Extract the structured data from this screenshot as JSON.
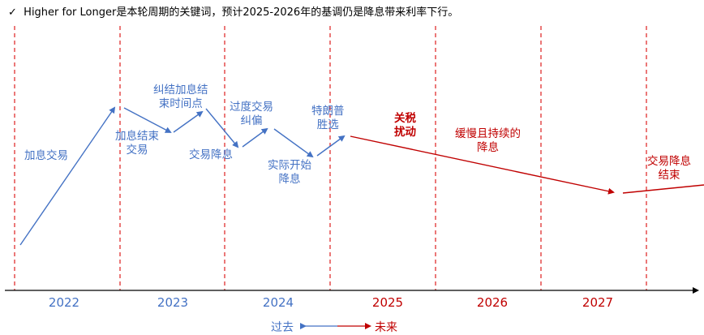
{
  "headline": {
    "check": "✓",
    "text": "Higher for Longer是本轮周期的关键词，预计2025-2026年的基调仍是降息带来利率下行。"
  },
  "years": [
    {
      "label": "2022",
      "color": "#4472c4"
    },
    {
      "label": "2023",
      "color": "#4472c4"
    },
    {
      "label": "2024",
      "color": "#4472c4"
    },
    {
      "label": "2025",
      "color": "#c00000"
    },
    {
      "label": "2026",
      "color": "#c00000"
    },
    {
      "label": "2027",
      "color": "#c00000"
    }
  ],
  "phases": {
    "rate_hike_trade": "加息交易",
    "hike_end_trade": [
      "加息结束",
      "交易"
    ],
    "correct_hike_end": [
      "纠结加息结",
      "束时间点"
    ],
    "cut_trade": "交易降息",
    "over_trade_correct": [
      "过度交易",
      "纠偏"
    ],
    "actual_cut_start": [
      "实际开始",
      "降息"
    ],
    "trump_elected": [
      "特朗普",
      "胜选"
    ],
    "tariff_disturb": [
      "关税",
      "扰动"
    ],
    "slow_sustained_cut": [
      "缓慢且持续的",
      "降息"
    ],
    "cut_trade_end": [
      "交易降息",
      "结束"
    ]
  },
  "legend": {
    "past": "过去",
    "future": "未来"
  },
  "colors": {
    "blue": "#4472c4",
    "red": "#c00000",
    "divider": "#e03030",
    "axis": "#000000"
  }
}
